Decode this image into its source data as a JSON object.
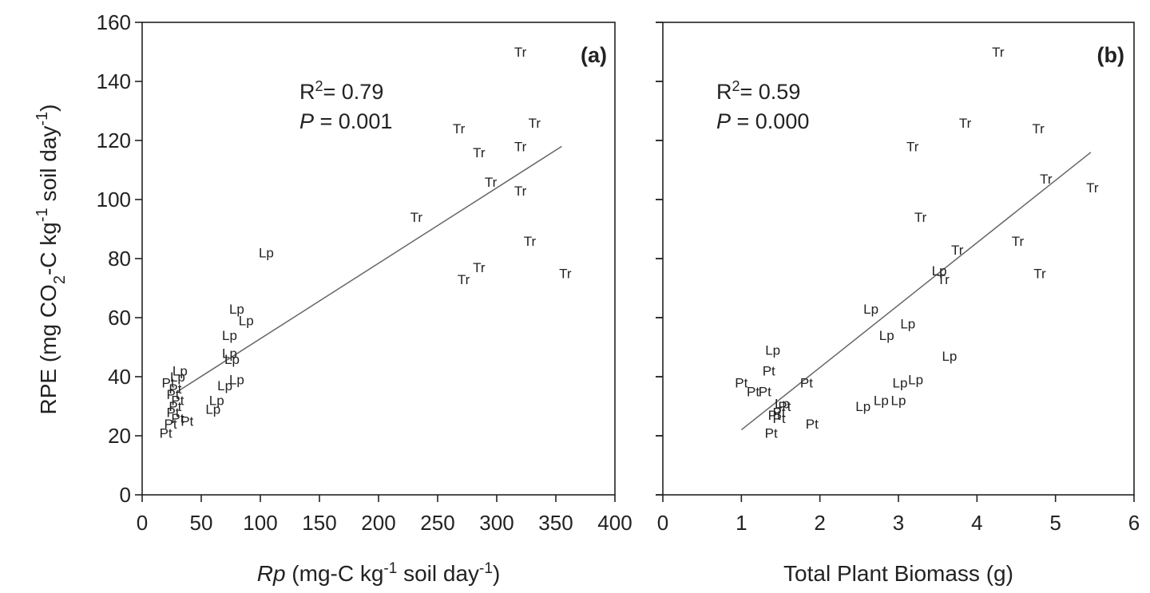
{
  "figure": {
    "y_axis_label": {
      "prefix": "RPE (mg CO",
      "sub": "2",
      "mid": "-C kg",
      "sup": "-1",
      "suffix1": " soil day",
      "sup2": "-1",
      "suffix2": ")"
    }
  },
  "chart_data": [
    {
      "type": "scatter",
      "panel_label": "(a)",
      "xlabel": {
        "italic": "Rp",
        "rest": " (mg-C kg",
        "sup": "-1",
        "rest2": " soil day",
        "sup2": "-1",
        "end": ")"
      },
      "xlim": [
        0,
        400
      ],
      "ylim": [
        0,
        160
      ],
      "xticks": [
        "0",
        "50",
        "100",
        "150",
        "200",
        "250",
        "300",
        "350",
        "400"
      ],
      "yticks": [
        "0",
        "20",
        "40",
        "60",
        "80",
        "100",
        "120",
        "140",
        "160"
      ],
      "stats": {
        "r2_label": "R",
        "r2_sup": "2",
        "r2_value": "= 0.79",
        "p_label": "P",
        "p_value": " = 0.001"
      },
      "fit_line": {
        "x": [
          30,
          355
        ],
        "y": [
          35,
          118
        ]
      },
      "points": [
        {
          "label": "Tr",
          "x": 320,
          "y": 150
        },
        {
          "label": "Tr",
          "x": 268,
          "y": 124
        },
        {
          "label": "Tr",
          "x": 332,
          "y": 126
        },
        {
          "label": "Tr",
          "x": 285,
          "y": 116
        },
        {
          "label": "Tr",
          "x": 320,
          "y": 118
        },
        {
          "label": "Tr",
          "x": 295,
          "y": 106
        },
        {
          "label": "Tr",
          "x": 320,
          "y": 103
        },
        {
          "label": "Tr",
          "x": 232,
          "y": 94
        },
        {
          "label": "Tr",
          "x": 328,
          "y": 86
        },
        {
          "label": "Tr",
          "x": 285,
          "y": 77
        },
        {
          "label": "Tr",
          "x": 272,
          "y": 73
        },
        {
          "label": "Tr",
          "x": 358,
          "y": 75
        },
        {
          "label": "Lp",
          "x": 105,
          "y": 82
        },
        {
          "label": "Lp",
          "x": 80,
          "y": 63
        },
        {
          "label": "Lp",
          "x": 88,
          "y": 59
        },
        {
          "label": "Lp",
          "x": 74,
          "y": 54
        },
        {
          "label": "Lp",
          "x": 74,
          "y": 48
        },
        {
          "label": "Lp",
          "x": 76,
          "y": 46
        },
        {
          "label": "Lp",
          "x": 80,
          "y": 39
        },
        {
          "label": "Lp",
          "x": 70,
          "y": 37
        },
        {
          "label": "Lp",
          "x": 63,
          "y": 32
        },
        {
          "label": "Lp",
          "x": 60,
          "y": 29
        },
        {
          "label": "Lp",
          "x": 32,
          "y": 42
        },
        {
          "label": "Lp",
          "x": 30,
          "y": 40
        },
        {
          "label": "Pt",
          "x": 22,
          "y": 38
        },
        {
          "label": "Pt",
          "x": 28,
          "y": 36
        },
        {
          "label": "Pt",
          "x": 26,
          "y": 34
        },
        {
          "label": "Pt",
          "x": 30,
          "y": 32
        },
        {
          "label": "Pt",
          "x": 28,
          "y": 30
        },
        {
          "label": "Pt",
          "x": 26,
          "y": 28
        },
        {
          "label": "Pt",
          "x": 30,
          "y": 26
        },
        {
          "label": "Pt",
          "x": 38,
          "y": 25
        },
        {
          "label": "Pt",
          "x": 24,
          "y": 24
        },
        {
          "label": "Pt",
          "x": 20,
          "y": 21
        }
      ]
    },
    {
      "type": "scatter",
      "panel_label": "(b)",
      "xlabel": {
        "italic": "",
        "rest": "Total Plant Biomass (g)",
        "sup": "",
        "rest2": "",
        "sup2": "",
        "end": ""
      },
      "xlim": [
        0,
        6
      ],
      "ylim": [
        0,
        160
      ],
      "xticks": [
        "0",
        "1",
        "2",
        "3",
        "4",
        "5",
        "6"
      ],
      "yticks": [
        "0",
        "20",
        "40",
        "60",
        "80",
        "100",
        "120",
        "140",
        "160"
      ],
      "stats": {
        "r2_label": "R",
        "r2_sup": "2",
        "r2_value": "= 0.59",
        "p_label": "P",
        "p_value": " = 0.000"
      },
      "fit_line": {
        "x": [
          1.0,
          5.45
        ],
        "y": [
          22,
          116
        ]
      },
      "points": [
        {
          "label": "Tr",
          "x": 4.27,
          "y": 150
        },
        {
          "label": "Tr",
          "x": 3.85,
          "y": 126
        },
        {
          "label": "Tr",
          "x": 4.78,
          "y": 124
        },
        {
          "label": "Tr",
          "x": 3.18,
          "y": 118
        },
        {
          "label": "Tr",
          "x": 4.88,
          "y": 107
        },
        {
          "label": "Tr",
          "x": 5.47,
          "y": 104
        },
        {
          "label": "Tr",
          "x": 3.28,
          "y": 94
        },
        {
          "label": "Tr",
          "x": 4.52,
          "y": 86
        },
        {
          "label": "Tr",
          "x": 3.75,
          "y": 83
        },
        {
          "label": "Tr",
          "x": 3.57,
          "y": 73
        },
        {
          "label": "Tr",
          "x": 4.8,
          "y": 75
        },
        {
          "label": "Lp",
          "x": 3.52,
          "y": 76
        },
        {
          "label": "Lp",
          "x": 2.65,
          "y": 63
        },
        {
          "label": "Lp",
          "x": 3.12,
          "y": 58
        },
        {
          "label": "Lp",
          "x": 2.85,
          "y": 54
        },
        {
          "label": "Lp",
          "x": 1.4,
          "y": 49
        },
        {
          "label": "Lp",
          "x": 3.65,
          "y": 47
        },
        {
          "label": "Lp",
          "x": 3.22,
          "y": 39
        },
        {
          "label": "Lp",
          "x": 3.02,
          "y": 38
        },
        {
          "label": "Lp",
          "x": 2.78,
          "y": 32
        },
        {
          "label": "Lp",
          "x": 3.0,
          "y": 32
        },
        {
          "label": "Lp",
          "x": 2.55,
          "y": 30
        },
        {
          "label": "Lp",
          "x": 1.52,
          "y": 31
        },
        {
          "label": "Pt",
          "x": 1.35,
          "y": 42
        },
        {
          "label": "Pt",
          "x": 1.0,
          "y": 38
        },
        {
          "label": "Pt",
          "x": 1.83,
          "y": 38
        },
        {
          "label": "Pt",
          "x": 1.15,
          "y": 35
        },
        {
          "label": "Pt",
          "x": 1.3,
          "y": 35
        },
        {
          "label": "Pt",
          "x": 1.55,
          "y": 30
        },
        {
          "label": "Pt",
          "x": 1.48,
          "y": 28
        },
        {
          "label": "Pt",
          "x": 1.42,
          "y": 27
        },
        {
          "label": "Pt",
          "x": 1.48,
          "y": 26
        },
        {
          "label": "Pt",
          "x": 1.9,
          "y": 24
        },
        {
          "label": "Pt",
          "x": 1.38,
          "y": 21
        }
      ]
    }
  ]
}
